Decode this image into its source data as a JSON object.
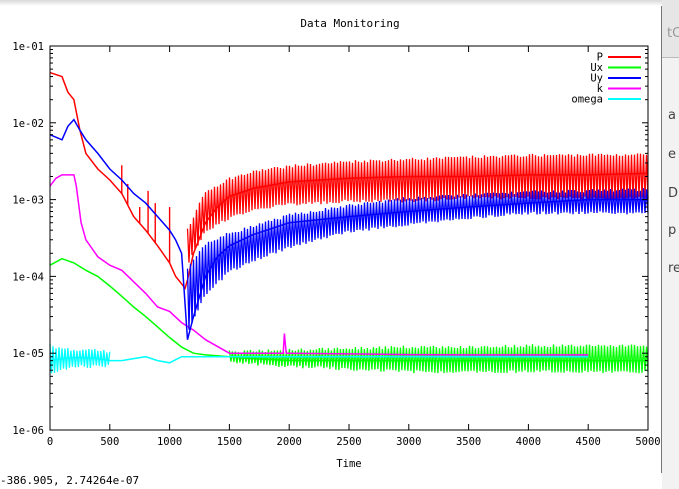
{
  "window": {
    "title": "Data Monitoring",
    "status_coords": "-386.905,  2.74264e-07"
  },
  "background_window": {
    "text_fragments": [
      "tC",
      "a",
      "e",
      "D",
      "p",
      "re"
    ]
  },
  "colors": {
    "P": "#ff0000",
    "Ux": "#00ff00",
    "Uy": "#0000ff",
    "k": "#ff00ff",
    "omega": "#00ffff"
  },
  "chart_data": {
    "type": "line",
    "title": "Data Monitoring",
    "xlabel": "Time",
    "ylabel": "",
    "xlim": [
      0,
      5000
    ],
    "ylim": [
      1e-06,
      0.1
    ],
    "yscale": "log",
    "grid": false,
    "legend_position": "top-right",
    "x_ticks": [
      0,
      500,
      1000,
      1500,
      2000,
      2500,
      3000,
      3500,
      4000,
      4500,
      5000
    ],
    "y_ticks": [
      1e-06,
      1e-05,
      0.0001,
      0.001,
      0.01,
      0.1
    ],
    "y_tick_labels": [
      "1e-06",
      "1e-05",
      "1e-04",
      "1e-03",
      "1e-02",
      "1e-01"
    ],
    "series": [
      {
        "name": "P",
        "color": "#ff0000",
        "x": [
          0,
          100,
          150,
          200,
          250,
          300,
          400,
          500,
          600,
          700,
          800,
          900,
          1000,
          1050,
          1100,
          1130,
          1150,
          1200,
          1300,
          1400,
          1500,
          1700,
          2000,
          2500,
          3000,
          3500,
          4000,
          4500,
          5000
        ],
        "y": [
          0.045,
          0.04,
          0.025,
          0.02,
          0.008,
          0.004,
          0.0025,
          0.0018,
          0.0012,
          0.0006,
          0.0004,
          0.00025,
          0.00015,
          0.0001,
          8e-05,
          7e-05,
          9e-05,
          0.0002,
          0.0005,
          0.0008,
          0.0011,
          0.0014,
          0.0017,
          0.0019,
          0.002,
          0.002,
          0.0021,
          0.0021,
          0.0022
        ],
        "band_low": [
          0.00015,
          0.0004,
          0.0006,
          0.0008,
          0.0009,
          0.001,
          0.001,
          0.0011,
          0.0011,
          0.0011
        ],
        "band_high": [
          0.0004,
          0.0012,
          0.0018,
          0.0023,
          0.0026,
          0.003,
          0.0032,
          0.0034,
          0.0036,
          0.0037
        ],
        "band_x": [
          1150,
          1300,
          1500,
          1750,
          2000,
          2500,
          3000,
          3500,
          4000,
          5000
        ],
        "spikes_x": [
          600,
          650,
          750,
          820,
          880,
          1000
        ],
        "spikes_y": [
          0.0028,
          0.0016,
          0.0008,
          0.0013,
          0.0009,
          0.0008
        ]
      },
      {
        "name": "Ux",
        "color": "#00ff00",
        "x": [
          0,
          100,
          200,
          300,
          400,
          500,
          600,
          700,
          800,
          900,
          1000,
          1100,
          1200,
          1300,
          1500,
          1700,
          2000,
          2500,
          3000,
          3500,
          4000,
          4500,
          5000
        ],
        "y": [
          0.00014,
          0.00017,
          0.00015,
          0.00012,
          0.0001,
          7.5e-05,
          5.5e-05,
          4e-05,
          3e-05,
          2.2e-05,
          1.6e-05,
          1.2e-05,
          1e-05,
          9.5e-06,
          9e-06,
          8.5e-06,
          8e-06,
          8e-06,
          8e-06,
          8e-06,
          8e-06,
          8e-06,
          8e-06
        ],
        "band_x": [
          1500,
          2000,
          2500,
          3000,
          3500,
          4000,
          4500,
          5000
        ],
        "band_low": [
          8e-06,
          7e-06,
          6.5e-06,
          6e-06,
          6e-06,
          6e-06,
          6e-06,
          6e-06
        ],
        "band_high": [
          1e-05,
          1.05e-05,
          1.1e-05,
          1.15e-05,
          1.15e-05,
          1.2e-05,
          1.2e-05,
          1.2e-05
        ]
      },
      {
        "name": "Uy",
        "color": "#0000ff",
        "x": [
          0,
          100,
          150,
          200,
          250,
          300,
          400,
          500,
          600,
          700,
          800,
          900,
          1000,
          1050,
          1100,
          1150,
          1200,
          1300,
          1400,
          1500,
          1700,
          2000,
          2500,
          3000,
          3500,
          4000,
          4500,
          5000
        ],
        "y": [
          0.007,
          0.006,
          0.009,
          0.011,
          0.008,
          0.006,
          0.004,
          0.0025,
          0.0018,
          0.0012,
          0.0009,
          0.0006,
          0.0004,
          0.0003,
          0.0002,
          1.5e-05,
          3e-05,
          0.0001,
          0.00018,
          0.00025,
          0.00035,
          0.0005,
          0.0006,
          0.0007,
          0.0008,
          0.0009,
          0.001,
          0.001
        ],
        "band_x": [
          1150,
          1300,
          1500,
          1750,
          2000,
          2500,
          3000,
          3500,
          4000,
          5000
        ],
        "band_low": [
          2e-05,
          6e-05,
          0.00012,
          0.00018,
          0.00025,
          0.0004,
          0.0005,
          0.0006,
          0.0007,
          0.0007
        ],
        "band_high": [
          0.00012,
          0.00025,
          0.00035,
          0.00045,
          0.0006,
          0.0008,
          0.001,
          0.0011,
          0.0012,
          0.0013
        ]
      },
      {
        "name": "k",
        "color": "#ff00ff",
        "x": [
          0,
          50,
          100,
          200,
          220,
          260,
          300,
          400,
          500,
          600,
          700,
          800,
          900,
          1000,
          1100,
          1200,
          1300,
          1500,
          1700,
          1950,
          1960,
          1975,
          2000,
          2500,
          3000,
          3500,
          4000,
          4500
        ],
        "y": [
          0.0015,
          0.0019,
          0.0021,
          0.0021,
          0.0015,
          0.0005,
          0.0003,
          0.00018,
          0.00014,
          0.00012,
          8.5e-05,
          6e-05,
          4e-05,
          3.5e-05,
          2.5e-05,
          2e-05,
          1.5e-05,
          1e-05,
          1e-05,
          1e-05,
          1.8e-05,
          1e-05,
          1e-05,
          9.8e-06,
          9.6e-06,
          9.5e-06,
          9.5e-06,
          9.5e-06
        ]
      },
      {
        "name": "omega",
        "color": "#00ffff",
        "x": [
          0,
          100,
          200,
          300,
          400,
          500,
          600,
          700,
          800,
          900,
          1000,
          1100,
          1200,
          1300,
          1500,
          1700,
          2000,
          2500,
          3000,
          3500,
          4000,
          4500
        ],
        "y": [
          8e-06,
          8.5e-06,
          8.8e-06,
          8.8e-06,
          8.5e-06,
          8e-06,
          8e-06,
          8.5e-06,
          9e-06,
          8e-06,
          7.5e-06,
          9e-06,
          9e-06,
          9e-06,
          9e-06,
          9e-06,
          9e-06,
          9e-06,
          9e-06,
          9e-06,
          9e-06,
          9e-06
        ],
        "band_x": [
          0,
          100,
          200,
          300,
          400,
          500
        ],
        "band_low": [
          5.5e-06,
          6.5e-06,
          7e-06,
          7e-06,
          7e-06,
          7.2e-06
        ],
        "band_high": [
          1.2e-05,
          1.1e-05,
          1.05e-05,
          1.05e-05,
          1.05e-05,
          1e-05
        ]
      }
    ]
  }
}
